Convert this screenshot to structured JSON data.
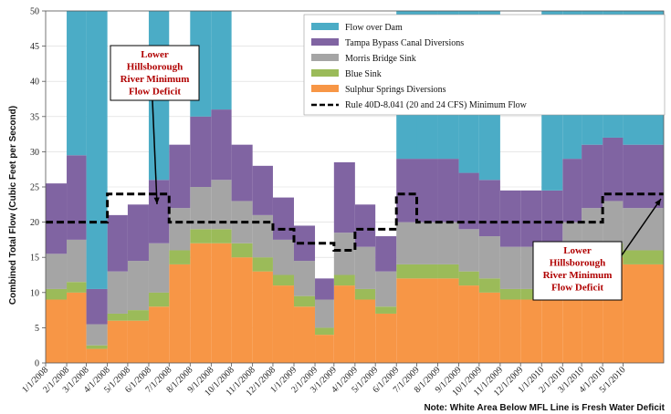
{
  "chart_data": {
    "type": "area",
    "ylabel": "Combined Total Flow (Cubic Feet per Second)",
    "ylim": [
      0,
      50
    ],
    "yticks": [
      0,
      5,
      10,
      15,
      20,
      25,
      30,
      35,
      40,
      45,
      50
    ],
    "x_start": "2008-01-01",
    "x_end": "2010-06-30",
    "categories": [
      "1/1/2008",
      "2/1/2008",
      "3/1/2008",
      "4/1/2008",
      "5/1/2008",
      "6/1/2008",
      "7/1/2008",
      "8/1/2008",
      "9/1/2008",
      "10/1/2008",
      "11/1/2008",
      "12/1/2008",
      "1/1/2009",
      "2/1/2009",
      "3/1/2009",
      "4/1/2009",
      "5/1/2009",
      "6/1/2009",
      "7/1/2009",
      "8/1/2009",
      "9/1/2009",
      "10/1/2009",
      "11/1/2009",
      "12/1/2009",
      "1/1/2010",
      "2/1/2010",
      "3/1/2010",
      "4/1/2010",
      "5/1/2010"
    ],
    "series": [
      {
        "name": "Sulphur Springs Diversions",
        "color": "#f79646",
        "values": [
          9,
          10,
          2,
          6,
          6,
          8,
          14,
          17,
          17,
          15,
          13,
          11,
          8,
          4,
          11,
          9,
          7,
          12,
          12,
          12,
          11,
          10,
          9,
          9,
          9,
          12,
          14,
          15,
          14
        ]
      },
      {
        "name": "Blue Sink",
        "color": "#9bbb59",
        "values": [
          1.5,
          1.5,
          0.5,
          1,
          1.5,
          2,
          2,
          2,
          2,
          2,
          2,
          1.5,
          1.5,
          1,
          1.5,
          1.5,
          1,
          2,
          2,
          2,
          2,
          2,
          1.5,
          1.5,
          1.5,
          2,
          2,
          2,
          2
        ]
      },
      {
        "name": "Morris Bridge Sink",
        "color": "#a5a5a5",
        "values": [
          5,
          6,
          3,
          6,
          7,
          7,
          6,
          6,
          7,
          6,
          6,
          5,
          5,
          4,
          6,
          6,
          5,
          6,
          6,
          6,
          6,
          6,
          6,
          6,
          6,
          6,
          6,
          6,
          6
        ]
      },
      {
        "name": "Tampa Bypass Canal Diversions",
        "color": "#8064a2",
        "values": [
          10,
          12,
          5,
          8,
          8,
          9,
          9,
          10,
          10,
          8,
          7,
          6,
          5,
          3,
          10,
          6,
          5,
          9,
          9,
          9,
          8,
          8,
          8,
          8,
          8,
          9,
          9,
          9,
          9
        ]
      },
      {
        "name": "Flow over Dam",
        "color": "#4bacc6",
        "values": [
          0,
          35,
          50,
          0,
          0,
          30,
          0,
          50,
          50,
          0,
          0,
          0,
          0,
          0,
          0,
          0,
          0,
          50,
          50,
          50,
          50,
          50,
          0,
          0,
          50,
          50,
          50,
          50,
          50
        ]
      }
    ],
    "mfl_line": {
      "name": "Rule 40D-8.041 (20 and 24 CFS) Minimum Flow",
      "color": "#000000",
      "values": [
        20,
        20,
        20,
        24,
        24,
        24,
        20,
        20,
        20,
        20,
        20,
        19,
        17,
        17,
        16,
        19,
        19,
        24,
        20,
        20,
        20,
        20,
        20,
        20,
        20,
        20,
        20,
        24,
        24
      ]
    },
    "annotations": [
      {
        "text": [
          "Lower",
          "Hillsborough",
          "River Minimum",
          "Flow Deficit"
        ],
        "points_to": "6/1/2008"
      },
      {
        "text": [
          "Lower",
          "Hillsborough",
          "River Minimum",
          "Flow Deficit"
        ],
        "points_to": "6/30/2010"
      }
    ],
    "note": "Note: White Area Below MFL Line is Fresh Water Deficit"
  }
}
